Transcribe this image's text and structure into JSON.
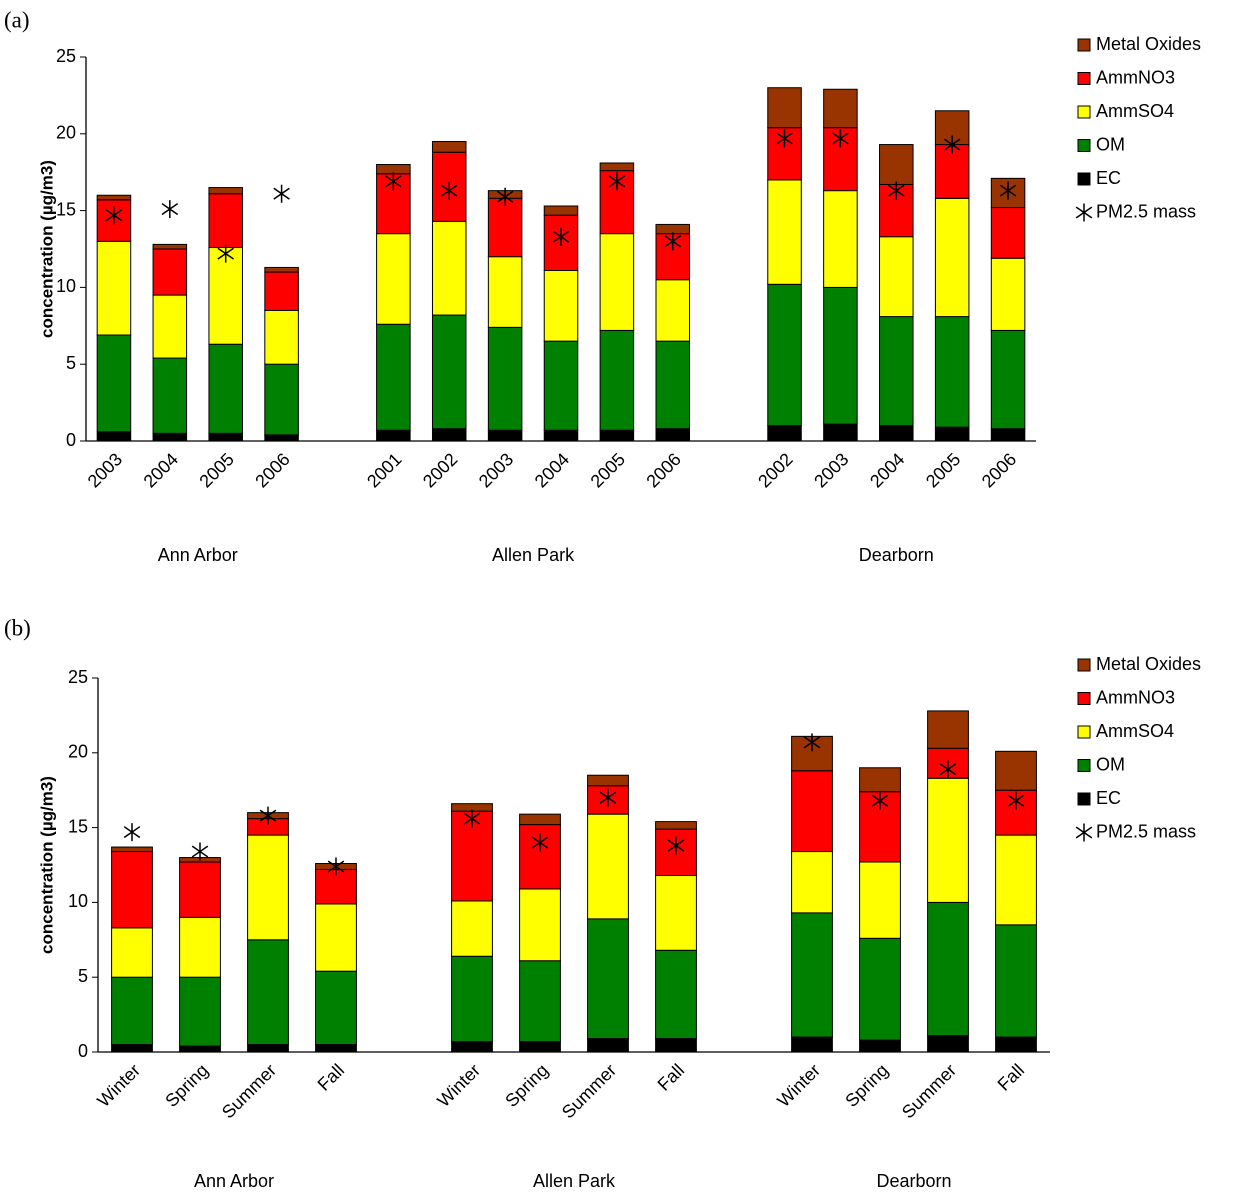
{
  "chart_data": [
    {
      "type": "bar",
      "stacked": true,
      "panel_label": "(a)",
      "y_label": "concentration (µg/m3)",
      "groups": [
        {
          "name": "Ann Arbor",
          "categories": [
            "2003",
            "2004",
            "2005",
            "2006"
          ]
        },
        {
          "name": "Allen Park",
          "categories": [
            "2001",
            "2002",
            "2003",
            "2004",
            "2005",
            "2006"
          ]
        },
        {
          "name": "Dearborn",
          "categories": [
            "2002",
            "2003",
            "2004",
            "2005",
            "2006"
          ]
        }
      ],
      "ylim": [
        0,
        25
      ],
      "yticks": [
        0,
        5,
        10,
        15,
        20,
        25
      ],
      "grid": false,
      "legend": "right",
      "series": [
        {
          "name": "EC",
          "color": "#000000",
          "values": [
            0.6,
            0.5,
            0.5,
            0.4,
            0.7,
            0.8,
            0.7,
            0.7,
            0.7,
            0.8,
            1.0,
            1.1,
            1.0,
            0.9,
            0.8
          ]
        },
        {
          "name": "OM",
          "color": "#008000",
          "values": [
            6.3,
            4.9,
            5.8,
            4.6,
            6.9,
            7.4,
            6.7,
            5.8,
            6.5,
            5.7,
            9.2,
            8.9,
            7.1,
            7.2,
            6.4
          ]
        },
        {
          "name": "AmmSO4",
          "color": "#ffff00",
          "values": [
            6.1,
            4.1,
            6.3,
            3.5,
            5.9,
            6.1,
            4.6,
            4.6,
            6.3,
            4.0,
            6.8,
            6.3,
            5.2,
            7.7,
            4.7
          ]
        },
        {
          "name": "AmmNO3",
          "color": "#ff0000",
          "values": [
            2.7,
            3.0,
            3.5,
            2.5,
            3.9,
            4.5,
            3.8,
            3.6,
            4.1,
            3.0,
            3.4,
            4.1,
            3.4,
            3.5,
            3.3
          ]
        },
        {
          "name": "Metal Oxides",
          "color": "#993300",
          "values": [
            0.3,
            0.3,
            0.4,
            0.3,
            0.6,
            0.7,
            0.5,
            0.6,
            0.5,
            0.6,
            2.6,
            2.5,
            2.6,
            2.2,
            1.9
          ]
        },
        {
          "name": "PM2.5 mass",
          "type": "scatter",
          "marker": "asterisk",
          "color": "#000000",
          "values": [
            14.7,
            15.1,
            12.2,
            16.1,
            16.9,
            16.3,
            15.9,
            13.3,
            16.9,
            13.0,
            19.7,
            19.7,
            16.3,
            19.3,
            16.3
          ]
        }
      ]
    },
    {
      "type": "bar",
      "stacked": true,
      "panel_label": "(b)",
      "y_label": "concentration (µg/m3)",
      "groups": [
        {
          "name": "Ann Arbor",
          "categories": [
            "Winter",
            "Spring",
            "Summer",
            "Fall"
          ]
        },
        {
          "name": "Allen Park",
          "categories": [
            "Winter",
            "Spring",
            "Summer",
            "Fall"
          ]
        },
        {
          "name": "Dearborn",
          "categories": [
            "Winter",
            "Spring",
            "Summer",
            "Fall"
          ]
        }
      ],
      "ylim": [
        0,
        25
      ],
      "yticks": [
        0,
        5,
        10,
        15,
        20,
        25
      ],
      "grid": false,
      "legend": "right",
      "series": [
        {
          "name": "EC",
          "color": "#000000",
          "values": [
            0.5,
            0.4,
            0.5,
            0.5,
            0.7,
            0.7,
            0.9,
            0.9,
            1.0,
            0.8,
            1.1,
            1.0
          ]
        },
        {
          "name": "OM",
          "color": "#008000",
          "values": [
            4.5,
            4.6,
            7.0,
            4.9,
            5.7,
            5.4,
            8.0,
            5.9,
            8.3,
            6.8,
            8.9,
            7.5
          ]
        },
        {
          "name": "AmmSO4",
          "color": "#ffff00",
          "values": [
            3.3,
            4.0,
            7.0,
            4.5,
            3.7,
            4.8,
            7.0,
            5.0,
            4.1,
            5.1,
            8.3,
            6.0
          ]
        },
        {
          "name": "AmmNO3",
          "color": "#ff0000",
          "values": [
            5.1,
            3.7,
            1.1,
            2.3,
            6.0,
            4.3,
            1.9,
            3.1,
            5.4,
            4.7,
            2.0,
            3.0
          ]
        },
        {
          "name": "Metal Oxides",
          "color": "#993300",
          "values": [
            0.3,
            0.3,
            0.4,
            0.4,
            0.5,
            0.7,
            0.7,
            0.5,
            2.3,
            1.6,
            2.5,
            2.6
          ]
        },
        {
          "name": "PM2.5 mass",
          "type": "scatter",
          "marker": "asterisk",
          "color": "#000000",
          "values": [
            14.7,
            13.4,
            15.8,
            12.4,
            15.6,
            14.0,
            17.0,
            13.8,
            20.7,
            16.8,
            18.9,
            16.8
          ]
        }
      ]
    }
  ]
}
